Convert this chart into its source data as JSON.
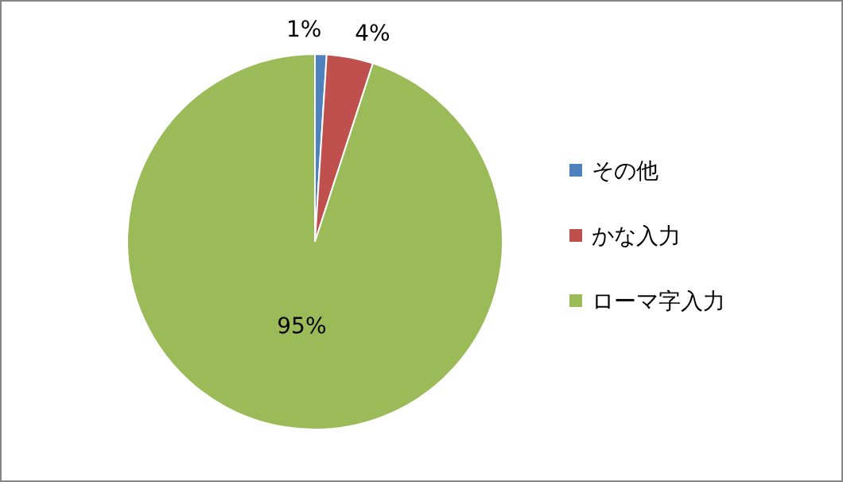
{
  "chart_data": {
    "type": "pie",
    "categories": [
      "その他",
      "かな入力",
      "ローマ字入力"
    ],
    "values": [
      1,
      4,
      95
    ],
    "colors": [
      "#4f81bd",
      "#c0504d",
      "#9bbb59"
    ],
    "value_labels": [
      "1%",
      "4%",
      "95%"
    ],
    "legend": "right"
  }
}
